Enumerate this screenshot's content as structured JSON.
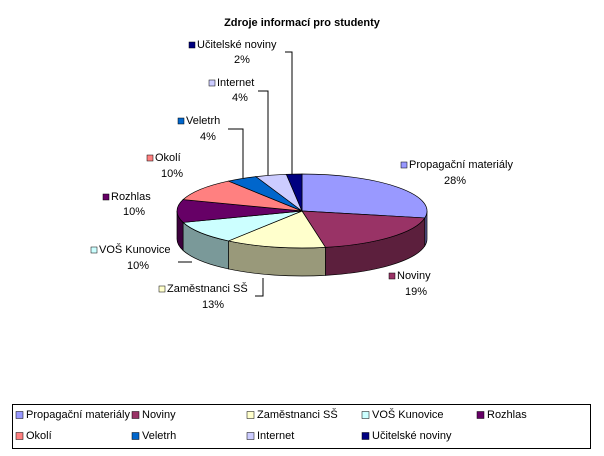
{
  "chart_data": {
    "type": "pie",
    "title": "Zdroje informací pro studenty",
    "categories": [
      "Propagační materiály",
      "Noviny",
      "Zaměstnanci SŠ",
      "VOŠ Kunovice",
      "Rozhlas",
      "Okolí",
      "Veletrh",
      "Internet",
      "Učitelské noviny"
    ],
    "values": [
      28,
      19,
      13,
      10,
      10,
      10,
      4,
      4,
      2
    ],
    "value_labels": [
      "28%",
      "19%",
      "13%",
      "10%",
      "10%",
      "10%",
      "4%",
      "4%",
      "2%"
    ],
    "colors": [
      "#9999ff",
      "#993366",
      "#ffffcc",
      "#ccffff",
      "#660066",
      "#ff8080",
      "#0066cc",
      "#ccccff",
      "#000080"
    ]
  }
}
